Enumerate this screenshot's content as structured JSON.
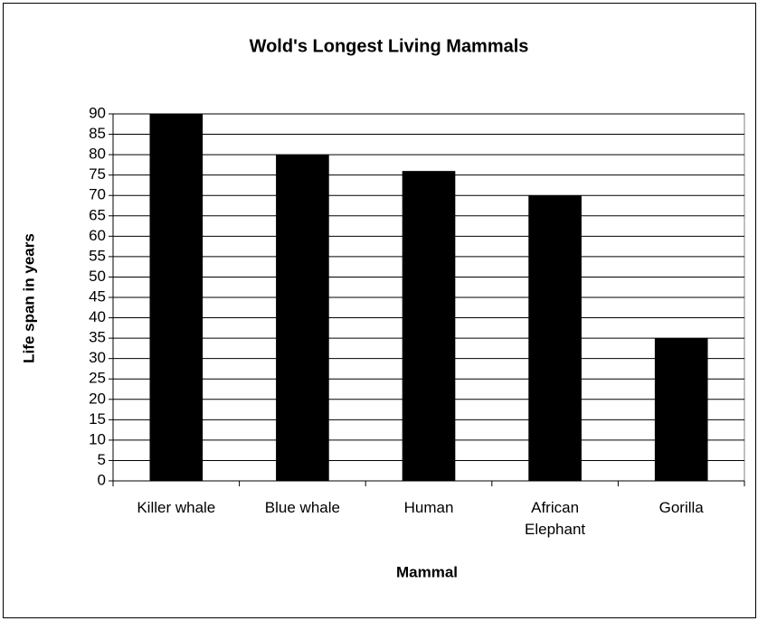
{
  "chart_data": {
    "type": "bar",
    "title": "Wold's Longest Living Mammals",
    "x_label": "Mammal",
    "y_label": "Life span in years",
    "categories": [
      "Killer whale",
      "Blue whale",
      "Human",
      "African Elephant",
      "Gorilla"
    ],
    "values": [
      90,
      80,
      76,
      70,
      35
    ],
    "color": "#000000",
    "ylim": [
      0,
      90
    ],
    "yticks": [
      0,
      5,
      10,
      15,
      20,
      25,
      30,
      35,
      40,
      45,
      50,
      55,
      60,
      65,
      70,
      75,
      80,
      85,
      90
    ],
    "grid": true
  }
}
